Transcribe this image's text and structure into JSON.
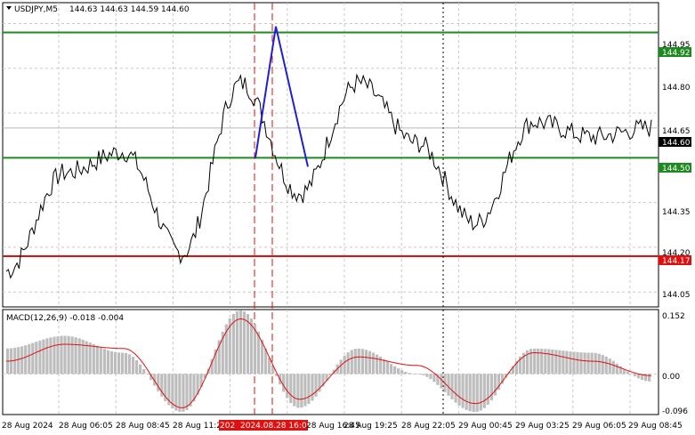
{
  "header": {
    "symbol": "USDJPY,M5",
    "ohlc": "144.63 144.63 144.59 144.60"
  },
  "indicator": {
    "title": "MACD(12,26,9) -0.018 -0.004"
  },
  "price_axis": {
    "ticks": [
      "144.95",
      "144.80",
      "144.65",
      "144.35",
      "144.20",
      "144.05"
    ],
    "levels": [
      {
        "label": "144.92",
        "color": "#1f8a1f"
      },
      {
        "label": "144.60",
        "color": "#000000"
      },
      {
        "label": "144.50",
        "color": "#1f8a1f"
      },
      {
        "label": "144.17",
        "color": "#e01010"
      }
    ]
  },
  "macd_axis": {
    "ticks": [
      "0.152",
      "0.00",
      "-0.096"
    ]
  },
  "time_axis": {
    "labels": [
      "28 Aug 2024",
      "28 Aug 06:05",
      "28 Aug 08:45",
      "28 Aug 11:2",
      "28 Aug 16:45",
      "28 Aug 19:25",
      "28 Aug 22:05",
      "29 Aug 00:45",
      "29 Aug 03:25",
      "29 Aug 06:05",
      "29 Aug 08:45"
    ],
    "highlight": "2024.08.28 16:05",
    "highlight_prefix": "202"
  },
  "chart_data": {
    "type": "line",
    "instrument": "USDJPY,M5",
    "y_range": [
      144.0,
      145.02
    ],
    "horizontal_levels": [
      144.92,
      144.5,
      144.17
    ],
    "current_price": 144.6,
    "x": [
      "28 Aug 2024",
      "28 Aug 06:05",
      "28 Aug 08:45",
      "28 Aug 11:2",
      "2024.08.28 16:05",
      "28 Aug 16:45",
      "28 Aug 19:25",
      "28 Aug 22:05",
      "29 Aug 00:45",
      "29 Aug 03:25",
      "29 Aug 06:05",
      "29 Aug 08:45"
    ],
    "price": [
      144.12,
      144.45,
      144.52,
      144.18,
      144.75,
      144.38,
      144.75,
      144.55,
      144.28,
      144.62,
      144.57,
      144.6
    ],
    "zigzag": [
      144.5,
      144.94,
      144.47
    ],
    "macd_y_range": [
      -0.096,
      0.152
    ],
    "macd_signal": [
      0.03,
      0.07,
      0.06,
      -0.08,
      0.13,
      -0.06,
      0.04,
      0.02,
      -0.07,
      0.05,
      0.03,
      -0.004
    ],
    "macd_histogram": [
      0.06,
      0.09,
      0.05,
      -0.09,
      0.15,
      -0.08,
      0.06,
      0.0,
      -0.09,
      0.06,
      0.05,
      -0.018
    ]
  }
}
